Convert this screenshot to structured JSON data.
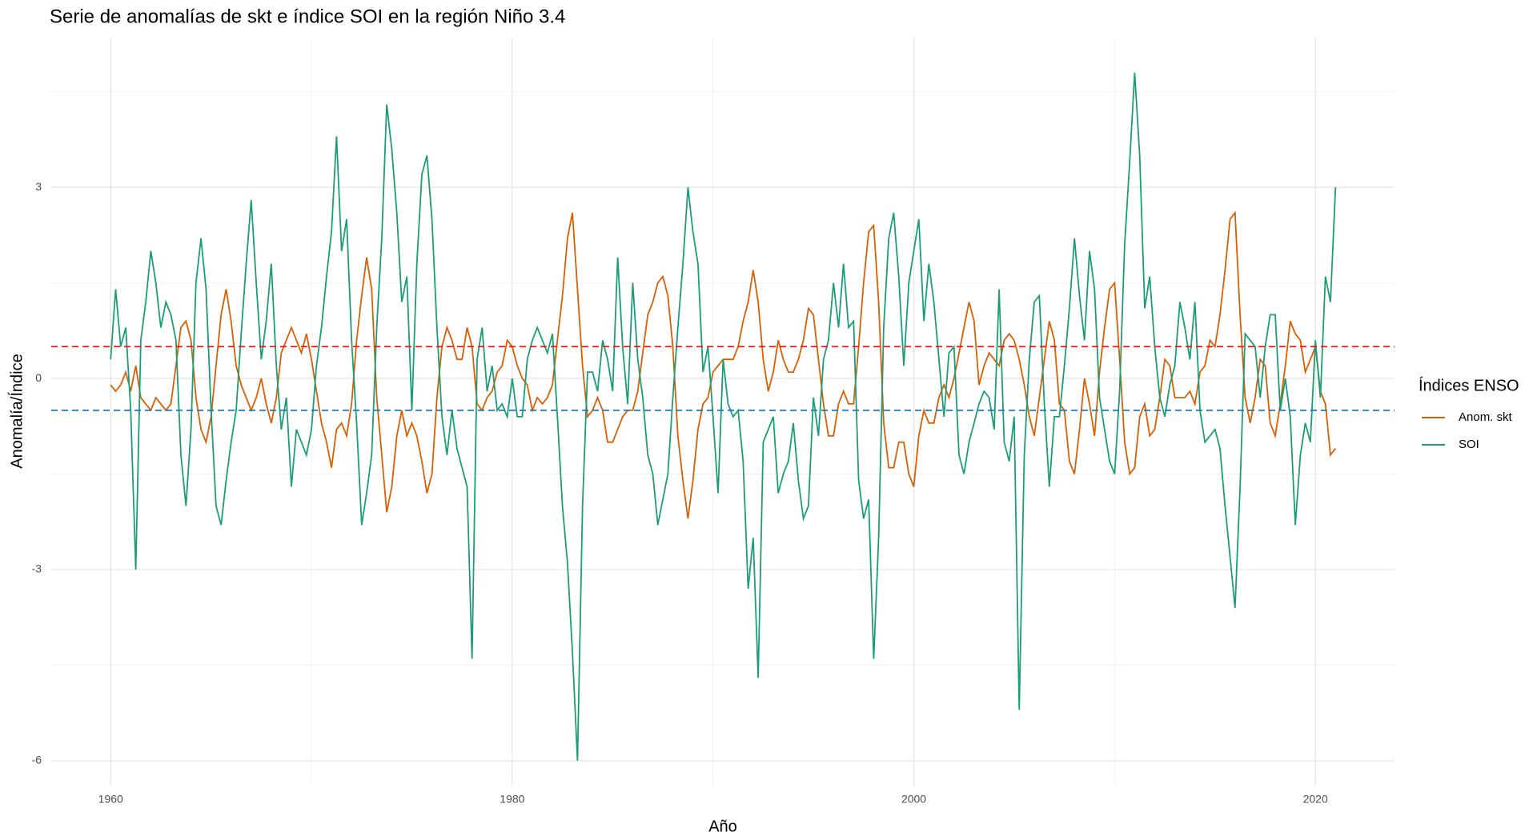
{
  "chart_data": {
    "type": "line",
    "title": "Serie de anomalías de skt e índice SOI en la región Niño 3.4",
    "x_label": "Año",
    "y_label": "Anomalía/Índice",
    "legend_title": "Índices ENSO",
    "legend_position": "right",
    "grid": true,
    "xlim": [
      1957.04,
      2023.94
    ],
    "xticks": [
      1960,
      1980,
      2000,
      2020
    ],
    "minor_xticks": [
      1970,
      1990,
      2010
    ],
    "ylim": [
      -6.39,
      5.35
    ],
    "yticks": [
      -6,
      -3,
      0,
      3
    ],
    "minor_yticks": [
      -4.5,
      -1.5,
      1.5,
      4.5
    ],
    "hlines": [
      {
        "value": 0.5,
        "color": "#e41a1c"
      },
      {
        "value": -0.5,
        "color": "#1f78b4"
      }
    ],
    "x": [
      1960,
      1960.25,
      1960.5,
      1960.75,
      1961,
      1961.25,
      1961.5,
      1961.75,
      1962,
      1962.25,
      1962.5,
      1962.75,
      1963,
      1963.25,
      1963.5,
      1963.75,
      1964,
      1964.25,
      1964.5,
      1964.75,
      1965,
      1965.25,
      1965.5,
      1965.75,
      1966,
      1966.25,
      1966.5,
      1966.75,
      1967,
      1967.25,
      1967.5,
      1967.75,
      1968,
      1968.25,
      1968.5,
      1968.75,
      1969,
      1969.25,
      1969.5,
      1969.75,
      1970,
      1970.25,
      1970.5,
      1970.75,
      1971,
      1971.25,
      1971.5,
      1971.75,
      1972,
      1972.25,
      1972.5,
      1972.75,
      1973,
      1973.25,
      1973.5,
      1973.75,
      1974,
      1974.25,
      1974.5,
      1974.75,
      1975,
      1975.25,
      1975.5,
      1975.75,
      1976,
      1976.25,
      1976.5,
      1976.75,
      1977,
      1977.25,
      1977.5,
      1977.75,
      1978,
      1978.25,
      1978.5,
      1978.75,
      1979,
      1979.25,
      1979.5,
      1979.75,
      1980,
      1980.25,
      1980.5,
      1980.75,
      1981,
      1981.25,
      1981.5,
      1981.75,
      1982,
      1982.25,
      1982.5,
      1982.75,
      1983,
      1983.25,
      1983.5,
      1983.75,
      1984,
      1984.25,
      1984.5,
      1984.75,
      1985,
      1985.25,
      1985.5,
      1985.75,
      1986,
      1986.25,
      1986.5,
      1986.75,
      1987,
      1987.25,
      1987.5,
      1987.75,
      1988,
      1988.25,
      1988.5,
      1988.75,
      1989,
      1989.25,
      1989.5,
      1989.75,
      1990,
      1990.25,
      1990.5,
      1990.75,
      1991,
      1991.25,
      1991.5,
      1991.75,
      1992,
      1992.25,
      1992.5,
      1992.75,
      1993,
      1993.25,
      1993.5,
      1993.75,
      1994,
      1994.25,
      1994.5,
      1994.75,
      1995,
      1995.25,
      1995.5,
      1995.75,
      1996,
      1996.25,
      1996.5,
      1996.75,
      1997,
      1997.25,
      1997.5,
      1997.75,
      1998,
      1998.25,
      1998.5,
      1998.75,
      1999,
      1999.25,
      1999.5,
      1999.75,
      2000,
      2000.25,
      2000.5,
      2000.75,
      2001,
      2001.25,
      2001.5,
      2001.75,
      2002,
      2002.25,
      2002.5,
      2002.75,
      2003,
      2003.25,
      2003.5,
      2003.75,
      2004,
      2004.25,
      2004.5,
      2004.75,
      2005,
      2005.25,
      2005.5,
      2005.75,
      2006,
      2006.25,
      2006.5,
      2006.75,
      2007,
      2007.25,
      2007.5,
      2007.75,
      2008,
      2008.25,
      2008.5,
      2008.75,
      2009,
      2009.25,
      2009.5,
      2009.75,
      2010,
      2010.25,
      2010.5,
      2010.75,
      2011,
      2011.25,
      2011.5,
      2011.75,
      2012,
      2012.25,
      2012.5,
      2012.75,
      2013,
      2013.25,
      2013.5,
      2013.75,
      2014,
      2014.25,
      2014.5,
      2014.75,
      2015,
      2015.25,
      2015.5,
      2015.75,
      2016,
      2016.25,
      2016.5,
      2016.75,
      2017,
      2017.25,
      2017.5,
      2017.75,
      2018,
      2018.25,
      2018.5,
      2018.75,
      2019,
      2019.25,
      2019.5,
      2019.75,
      2020,
      2020.25,
      2020.5,
      2020.75,
      2021
    ],
    "series": [
      {
        "name": "Anom. skt",
        "color": "#d95f02",
        "values": [
          -0.1,
          -0.2,
          -0.1,
          0.1,
          -0.2,
          0.2,
          -0.3,
          -0.4,
          -0.5,
          -0.3,
          -0.4,
          -0.5,
          -0.4,
          0.2,
          0.8,
          0.9,
          0.6,
          -0.3,
          -0.8,
          -1.0,
          -0.6,
          0.2,
          1.0,
          1.4,
          0.9,
          0.2,
          -0.1,
          -0.3,
          -0.5,
          -0.3,
          0.0,
          -0.4,
          -0.7,
          -0.3,
          0.4,
          0.6,
          0.8,
          0.6,
          0.4,
          0.7,
          0.3,
          -0.2,
          -0.7,
          -1.0,
          -1.4,
          -0.8,
          -0.7,
          -0.9,
          -0.4,
          0.6,
          1.3,
          1.9,
          1.4,
          -0.3,
          -1.2,
          -2.1,
          -1.7,
          -0.9,
          -0.5,
          -0.9,
          -0.7,
          -0.9,
          -1.3,
          -1.8,
          -1.5,
          -0.3,
          0.5,
          0.8,
          0.6,
          0.3,
          0.3,
          0.8,
          0.5,
          -0.4,
          -0.5,
          -0.3,
          -0.2,
          0.1,
          0.2,
          0.6,
          0.5,
          0.2,
          0.0,
          -0.1,
          -0.5,
          -0.3,
          -0.4,
          -0.3,
          -0.1,
          0.6,
          1.3,
          2.2,
          2.6,
          1.4,
          0.2,
          -0.6,
          -0.5,
          -0.3,
          -0.5,
          -1.0,
          -1.0,
          -0.8,
          -0.6,
          -0.5,
          -0.5,
          -0.2,
          0.4,
          1.0,
          1.2,
          1.5,
          1.6,
          1.3,
          0.5,
          -0.9,
          -1.6,
          -2.2,
          -1.6,
          -0.8,
          -0.4,
          -0.3,
          0.1,
          0.2,
          0.3,
          0.3,
          0.3,
          0.5,
          0.9,
          1.2,
          1.7,
          1.2,
          0.3,
          -0.2,
          0.1,
          0.6,
          0.3,
          0.1,
          0.1,
          0.3,
          0.6,
          1.1,
          1.0,
          0.3,
          -0.4,
          -0.9,
          -0.9,
          -0.4,
          -0.2,
          -0.4,
          -0.4,
          0.5,
          1.5,
          2.3,
          2.4,
          1.2,
          -0.7,
          -1.4,
          -1.4,
          -1.0,
          -1.0,
          -1.5,
          -1.7,
          -0.9,
          -0.5,
          -0.7,
          -0.7,
          -0.3,
          -0.1,
          -0.3,
          0.0,
          0.4,
          0.8,
          1.2,
          0.9,
          -0.1,
          0.2,
          0.4,
          0.3,
          0.2,
          0.6,
          0.7,
          0.6,
          0.3,
          -0.1,
          -0.6,
          -0.9,
          -0.3,
          0.3,
          0.9,
          0.6,
          -0.4,
          -0.5,
          -1.3,
          -1.5,
          -0.8,
          0.0,
          -0.4,
          -0.9,
          0.1,
          0.8,
          1.4,
          1.5,
          0.3,
          -1.0,
          -1.5,
          -1.4,
          -0.6,
          -0.4,
          -0.9,
          -0.8,
          -0.3,
          0.3,
          0.2,
          -0.3,
          -0.3,
          -0.3,
          -0.2,
          -0.4,
          0.1,
          0.2,
          0.6,
          0.5,
          1.0,
          1.7,
          2.5,
          2.6,
          1.0,
          -0.3,
          -0.7,
          -0.3,
          0.3,
          0.2,
          -0.7,
          -0.9,
          -0.4,
          0.2,
          0.9,
          0.7,
          0.6,
          0.1,
          0.3,
          0.5,
          -0.2,
          -0.4,
          -1.2,
          -1.1
        ]
      },
      {
        "name": "SOI",
        "color": "#1b9e77",
        "values": [
          0.3,
          1.4,
          0.5,
          0.8,
          -0.5,
          -3.0,
          0.6,
          1.2,
          2.0,
          1.5,
          0.8,
          1.2,
          1.0,
          0.6,
          -1.2,
          -2.0,
          -0.8,
          1.5,
          2.2,
          1.4,
          -0.5,
          -2.0,
          -2.3,
          -1.6,
          -1.0,
          -0.5,
          0.7,
          1.8,
          2.8,
          1.5,
          0.3,
          0.9,
          1.8,
          0.2,
          -0.8,
          -0.3,
          -1.7,
          -0.8,
          -1.0,
          -1.2,
          -0.8,
          0.2,
          0.8,
          1.6,
          2.3,
          3.8,
          2.0,
          2.5,
          0.6,
          -0.7,
          -2.3,
          -1.8,
          -1.2,
          0.8,
          2.2,
          4.3,
          3.6,
          2.6,
          1.2,
          1.6,
          -0.5,
          1.8,
          3.2,
          3.5,
          2.5,
          0.8,
          -0.6,
          -1.2,
          -0.5,
          -1.1,
          -1.4,
          -1.7,
          -4.4,
          0.3,
          0.8,
          -0.2,
          0.2,
          -0.5,
          -0.4,
          -0.6,
          0.0,
          -0.6,
          -0.6,
          0.3,
          0.6,
          0.8,
          0.6,
          0.4,
          0.7,
          -0.6,
          -2.0,
          -2.9,
          -4.3,
          -6.0,
          -2.0,
          0.1,
          0.1,
          -0.2,
          0.6,
          0.3,
          -0.2,
          1.9,
          0.5,
          -0.4,
          1.5,
          0.3,
          -0.3,
          -1.2,
          -1.5,
          -2.3,
          -1.9,
          -1.5,
          -0.3,
          0.8,
          1.8,
          3.0,
          2.3,
          1.8,
          0.1,
          0.5,
          -0.6,
          -1.8,
          0.3,
          -0.4,
          -0.6,
          -0.5,
          -1.3,
          -3.3,
          -2.5,
          -4.7,
          -1.0,
          -0.8,
          -0.6,
          -1.8,
          -1.5,
          -1.3,
          -0.7,
          -1.6,
          -2.2,
          -2.0,
          -0.3,
          -0.9,
          0.3,
          0.6,
          1.5,
          0.8,
          1.8,
          0.8,
          0.9,
          -1.6,
          -2.2,
          -1.9,
          -4.4,
          -2.5,
          0.8,
          2.2,
          2.6,
          1.6,
          0.2,
          1.5,
          2.0,
          2.5,
          0.9,
          1.8,
          1.2,
          0.3,
          -0.6,
          0.4,
          0.5,
          -1.2,
          -1.5,
          -1.0,
          -0.7,
          -0.4,
          -0.2,
          -0.3,
          -0.8,
          1.4,
          -1.0,
          -1.3,
          -0.6,
          -5.2,
          -1.2,
          0.3,
          1.2,
          1.3,
          -0.4,
          -1.7,
          -0.6,
          -0.6,
          0.2,
          1.1,
          2.2,
          1.3,
          0.6,
          2.0,
          1.4,
          -0.3,
          -0.8,
          -1.3,
          -1.5,
          -0.2,
          2.1,
          3.4,
          4.8,
          3.5,
          1.1,
          1.6,
          0.5,
          -0.3,
          -0.6,
          -0.1,
          0.2,
          1.2,
          0.8,
          0.3,
          1.2,
          -0.5,
          -1.0,
          -0.9,
          -0.8,
          -1.1,
          -2.0,
          -2.8,
          -3.6,
          -1.7,
          0.7,
          0.6,
          0.5,
          -0.3,
          0.5,
          1.0,
          1.0,
          -0.5,
          0.0,
          -0.6,
          -2.3,
          -1.2,
          -0.7,
          -1.0,
          0.6,
          -0.3,
          1.6,
          1.2,
          3.0
        ]
      }
    ]
  }
}
